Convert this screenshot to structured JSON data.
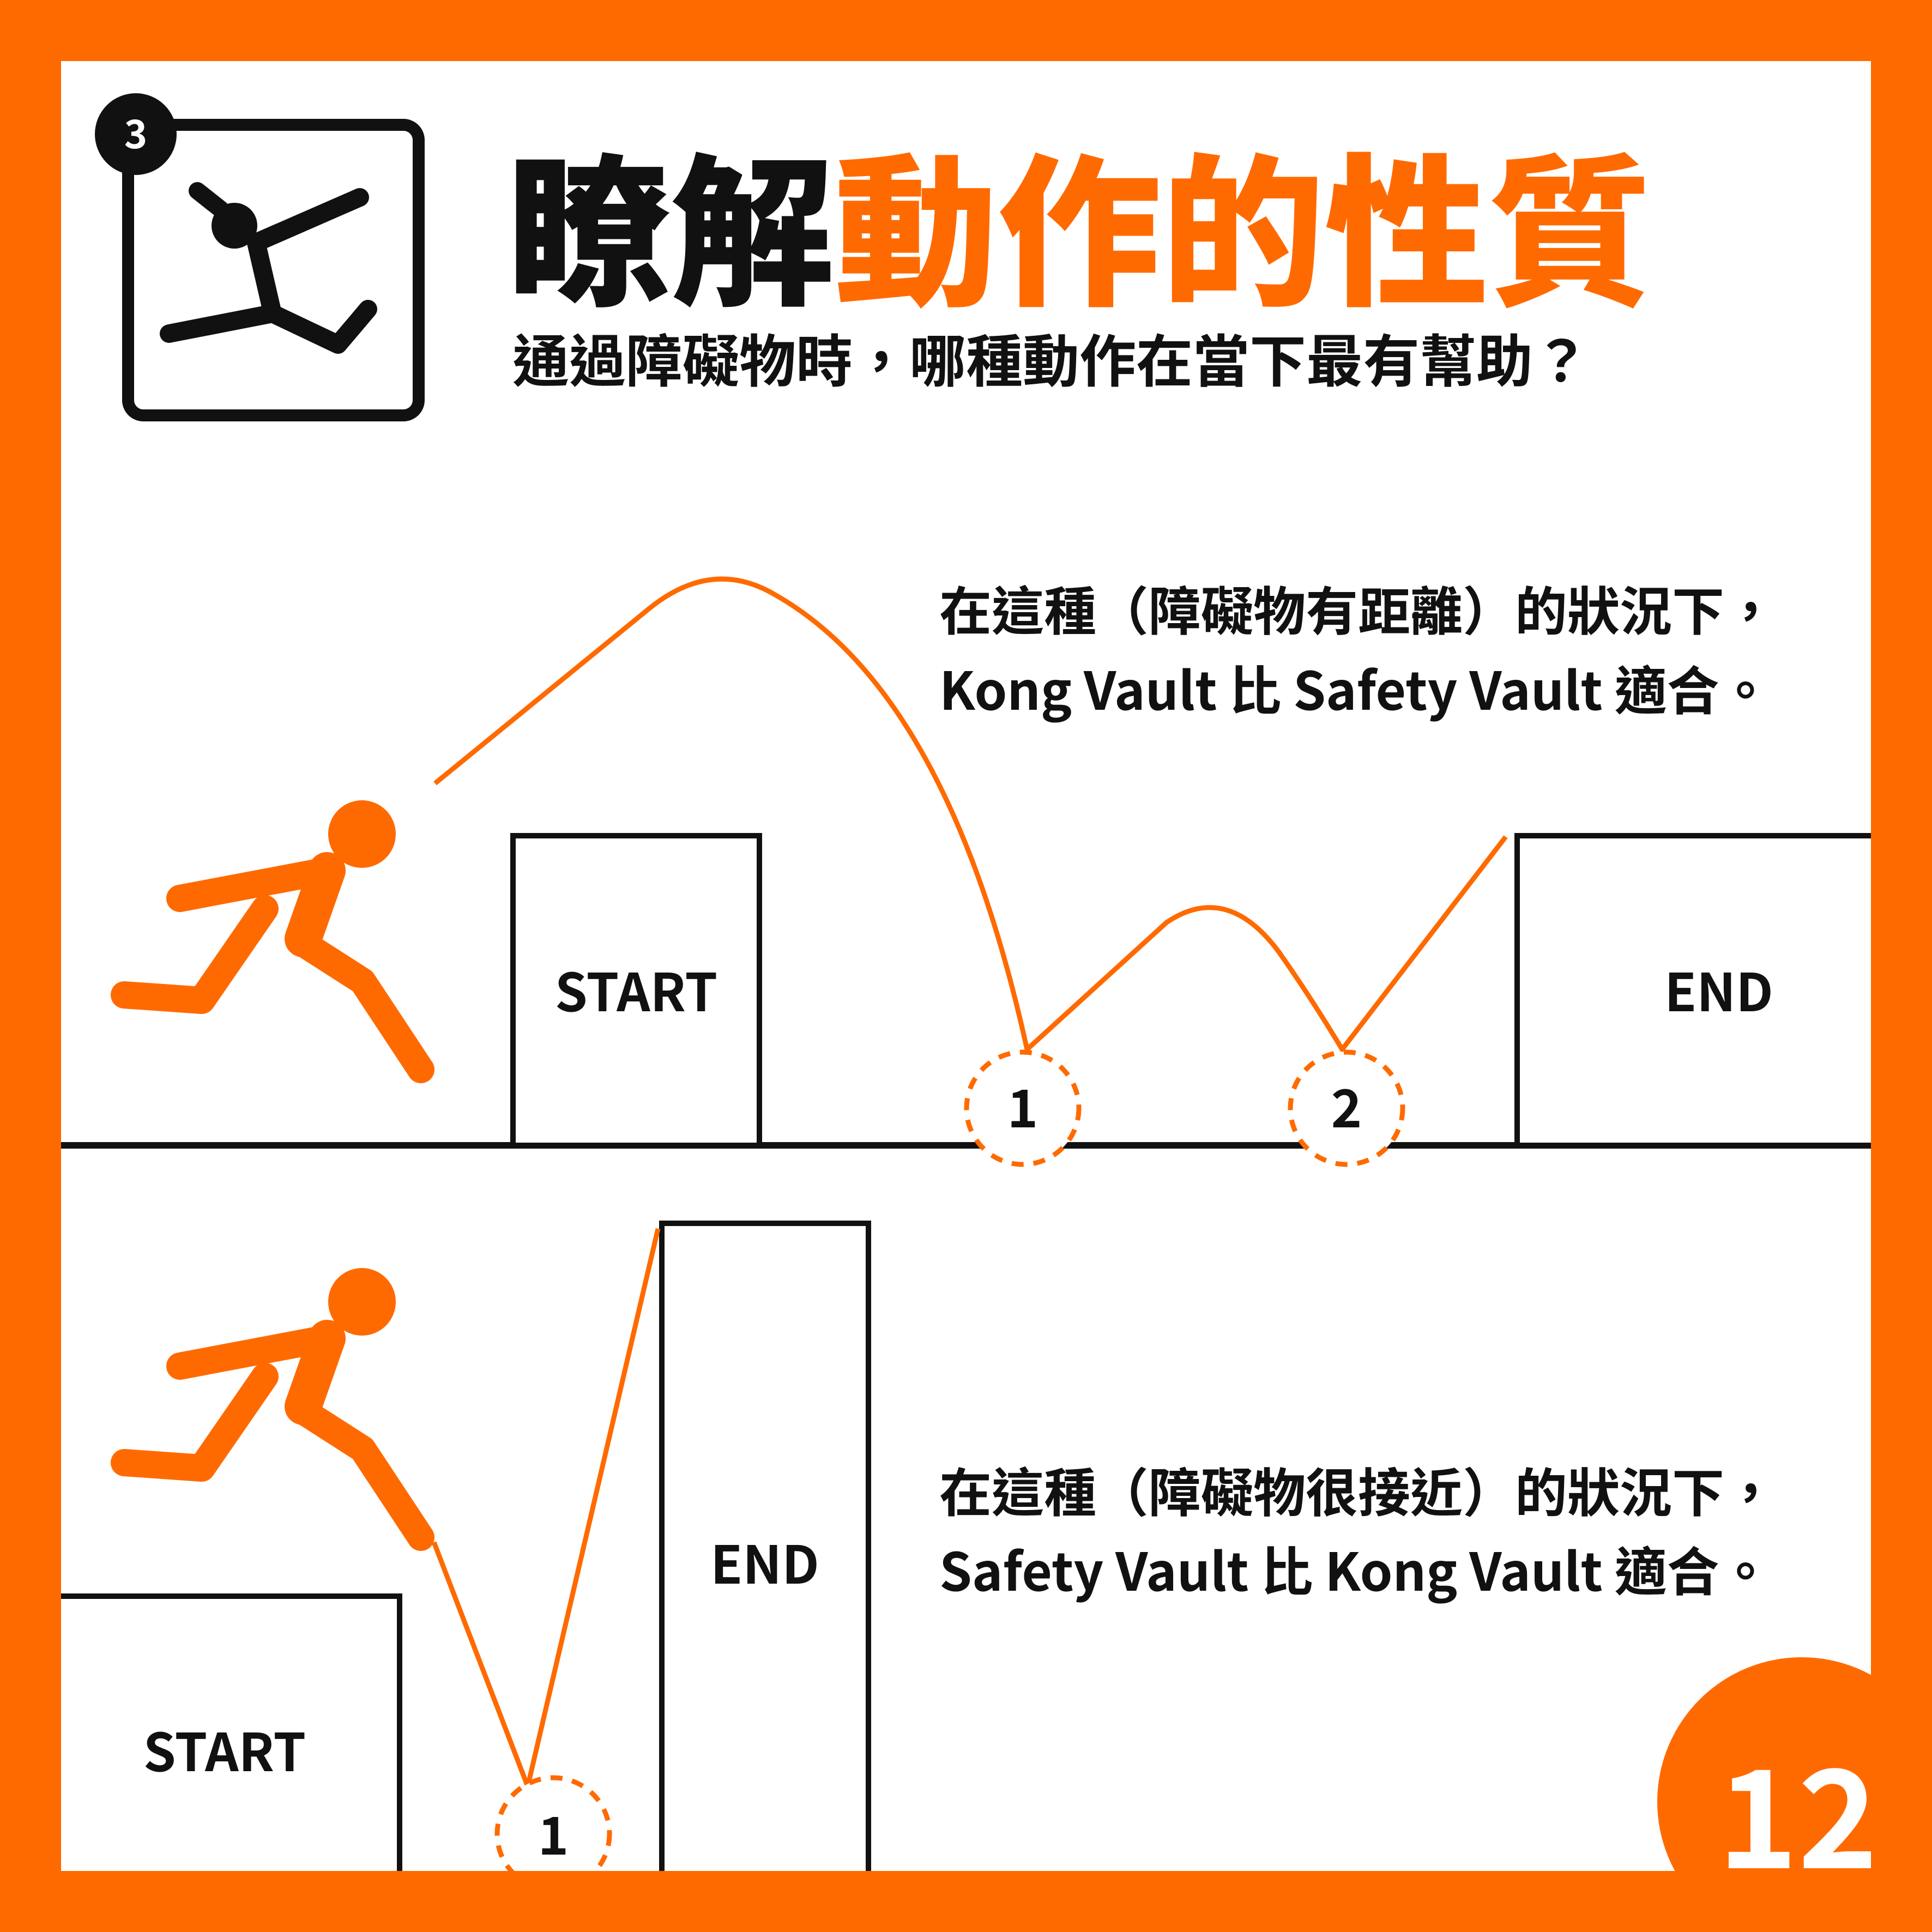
{
  "badge": {
    "number": "3"
  },
  "title": {
    "part1": "瞭解",
    "part2": "動作的性質"
  },
  "subtitle": "通過障礙物時，哪種動作在當下最有幫助？",
  "scenario_top": {
    "line1": "在這種（障礙物有距離）的狀況下，",
    "line2": "Kong Vault  比  Safety Vault  適合。",
    "start_label": "START",
    "end_label": "END",
    "markers": [
      "1",
      "2"
    ]
  },
  "scenario_bottom": {
    "line1": "在這種（障礙物很接近）的狀況下，",
    "line2": "Safety Vault  比  Kong Vault  適合。",
    "start_label": "START",
    "end_label": "END",
    "markers": [
      "1"
    ]
  },
  "page_number": "12",
  "colors": {
    "accent": "#ff6a00",
    "ink": "#111111",
    "background": "#ffffff"
  },
  "icons": {
    "badge_icon": "person-vaulting-icon",
    "runner": "running-person-icon"
  }
}
